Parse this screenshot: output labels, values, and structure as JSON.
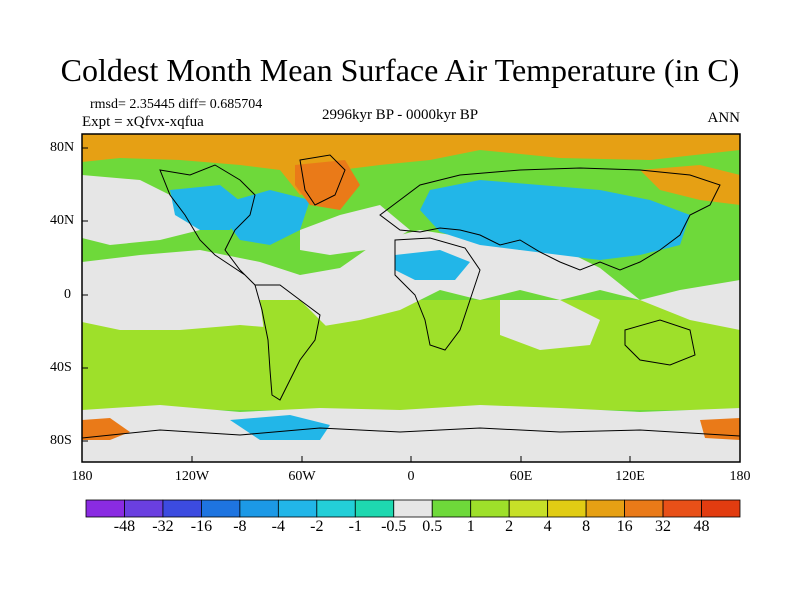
{
  "title": "Coldest Month Mean Surface Air Temperature (in C)",
  "stats_line": "rmsd= 2.35445 diff= 0.685704",
  "expt_line": "Expt = xQfvx-xqfua",
  "period": "2996kyr BP - 0000kyr BP",
  "season": "ANN",
  "lat_labels": [
    "80N",
    "40N",
    "0",
    "40S",
    "80S"
  ],
  "lat_values": [
    80,
    40,
    0,
    -40,
    -80
  ],
  "lon_labels": [
    "180",
    "120W",
    "60W",
    "0",
    "60E",
    "120E",
    "180"
  ],
  "lon_values": [
    -180,
    -120,
    -60,
    0,
    60,
    120,
    180
  ],
  "colorbar": {
    "labels": [
      "-48",
      "-32",
      "-16",
      "-8",
      "-4",
      "-2",
      "-1",
      "-0.5",
      "0.5",
      "1",
      "2",
      "4",
      "8",
      "16",
      "32",
      "48"
    ],
    "colors": [
      "#8a2be2",
      "#6a3fe0",
      "#3c4be0",
      "#1e74e0",
      "#1c99e6",
      "#22b6e8",
      "#23cfd8",
      "#1ed8b0",
      "#e6e6e6",
      "#6ed93a",
      "#9ee02a",
      "#c7e028",
      "#e1cc14",
      "#e6a014",
      "#ea7a18",
      "#e85018",
      "#e23c10"
    ]
  },
  "map_regions": [
    {
      "name": "base-ocean-north",
      "color": "#6ed93a"
    },
    {
      "name": "tropical-band",
      "color": "#e6e6e6"
    },
    {
      "name": "atlantic-cool",
      "color": "#22b6e8"
    },
    {
      "name": "asia-cool",
      "color": "#22b6e8"
    },
    {
      "name": "southern-green",
      "color": "#9ee02a"
    },
    {
      "name": "arctic-warm",
      "color": "#e6a014"
    },
    {
      "name": "antarctic-band",
      "color": "#e6e6e6"
    }
  ]
}
